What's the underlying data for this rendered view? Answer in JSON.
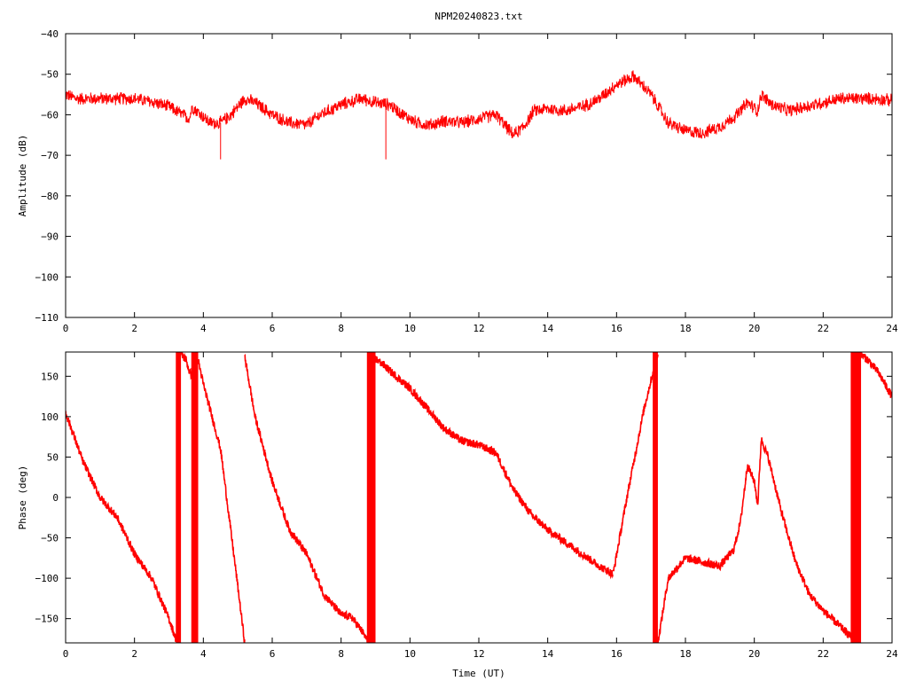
{
  "title": "NPM20240823.txt",
  "series_color": "#ff0000",
  "chart_data": [
    {
      "type": "line",
      "xlabel": "",
      "ylabel": "Amplitude (dB)",
      "xlim": [
        0,
        24
      ],
      "ylim": [
        -110,
        -40
      ],
      "xticks": [
        "0",
        "2",
        "4",
        "6",
        "8",
        "10",
        "12",
        "14",
        "16",
        "18",
        "20",
        "22",
        "24"
      ],
      "yticks": [
        "-110",
        "-100",
        "-90",
        "-80",
        "-70",
        "-60",
        "-50",
        "-40"
      ],
      "grid": false,
      "noise_db": 1.0,
      "x": [
        0,
        0.3,
        1.0,
        2.0,
        2.6,
        3.0,
        3.6,
        3.62,
        3.68,
        3.8,
        4.2,
        4.5,
        4.8,
        5.2,
        5.5,
        6.0,
        6.5,
        7.0,
        7.4,
        8.0,
        8.6,
        9.0,
        9.4,
        9.8,
        10.2,
        10.6,
        11.0,
        11.5,
        12.0,
        12.5,
        12.8,
        13.0,
        13.3,
        13.6,
        14.0,
        14.5,
        15.0,
        15.5,
        16.0,
        16.5,
        17.0,
        17.5,
        18.0,
        18.5,
        19.0,
        19.5,
        19.8,
        20.1,
        20.2,
        20.5,
        21.0,
        21.5,
        22.0,
        22.5,
        23.0,
        23.5,
        24.0
      ],
      "y": [
        -55,
        -56,
        -56,
        -56,
        -57,
        -58,
        -61,
        -60,
        -58,
        -59,
        -62,
        -62,
        -60,
        -56,
        -57,
        -60,
        -62,
        -62.5,
        -60,
        -57.5,
        -56,
        -57,
        -57.5,
        -60,
        -62,
        -62.5,
        -61.5,
        -62,
        -61,
        -60,
        -63,
        -65,
        -63,
        -59,
        -58.5,
        -59,
        -58,
        -56,
        -52.5,
        -50.5,
        -55,
        -62,
        -64,
        -64.5,
        -63,
        -60,
        -57,
        -59,
        -55,
        -57.5,
        -59,
        -58,
        -57,
        -56,
        -56,
        -56,
        -56.5
      ],
      "spikes": [
        {
          "x": 4.5,
          "y": -71
        },
        {
          "x": 9.3,
          "y": -71
        }
      ]
    },
    {
      "type": "line",
      "xlabel": "Time (UT)",
      "ylabel": "Phase (deg)",
      "xlim": [
        0,
        24
      ],
      "ylim": [
        -180,
        180
      ],
      "xticks": [
        "0",
        "2",
        "4",
        "6",
        "8",
        "10",
        "12",
        "14",
        "16",
        "18",
        "20",
        "22",
        "24"
      ],
      "yticks": [
        "-150",
        "-100",
        "-50",
        "0",
        "50",
        "100",
        "150"
      ],
      "grid": false,
      "noise_deg": 5,
      "segments": [
        {
          "x": [
            0,
            0.5,
            1.0,
            1.5,
            2.0,
            2.5,
            3.0,
            3.2
          ],
          "y": [
            105,
            45,
            0,
            -25,
            -70,
            -100,
            -150,
            -175
          ]
        },
        {
          "x": [
            3.3,
            3.5,
            3.6,
            3.7
          ],
          "y": [
            180,
            170,
            155,
            150
          ]
        },
        {
          "x": [
            3.85,
            4.0,
            4.5,
            5.0,
            5.2
          ],
          "y": [
            170,
            140,
            60,
            -110,
            -180
          ]
        },
        {
          "x": [
            5.2,
            5.5,
            6.0,
            6.5,
            7.0,
            7.5,
            8.0,
            8.3,
            8.6,
            8.8
          ],
          "y": [
            175,
            100,
            20,
            -40,
            -70,
            -120,
            -145,
            -148,
            -165,
            -180
          ]
        },
        {
          "x": [
            8.9,
            9.2,
            9.6,
            10.0,
            10.5,
            11.0,
            11.5,
            12.0,
            12.5,
            13.0,
            13.5,
            14.0,
            14.5,
            15.0,
            15.5,
            15.9
          ],
          "y": [
            175,
            165,
            150,
            135,
            110,
            85,
            70,
            65,
            55,
            10,
            -20,
            -40,
            -55,
            -70,
            -85,
            -95
          ]
        },
        {
          "x": [
            15.9,
            16.3,
            16.8,
            17.2
          ],
          "y": [
            -95,
            0,
            110,
            180
          ]
        },
        {
          "x": [
            17.2,
            17.5,
            18.0,
            18.5,
            19.0,
            19.4,
            19.6,
            19.8,
            20.0,
            20.1,
            20.2,
            20.4,
            20.8,
            21.2,
            21.6,
            22.0,
            22.5,
            23.0
          ],
          "y": [
            -180,
            -100,
            -75,
            -80,
            -85,
            -65,
            -30,
            40,
            20,
            -10,
            72,
            50,
            -20,
            -80,
            -120,
            -140,
            -160,
            -180
          ]
        },
        {
          "x": [
            23.0,
            23.3,
            23.6,
            24.0
          ],
          "y": [
            180,
            170,
            155,
            125
          ]
        }
      ],
      "fill_bands": [
        [
          3.2,
          3.35
        ],
        [
          3.65,
          3.85
        ],
        [
          8.75,
          9.0
        ],
        [
          17.05,
          17.2
        ],
        [
          22.8,
          23.1
        ]
      ]
    }
  ]
}
